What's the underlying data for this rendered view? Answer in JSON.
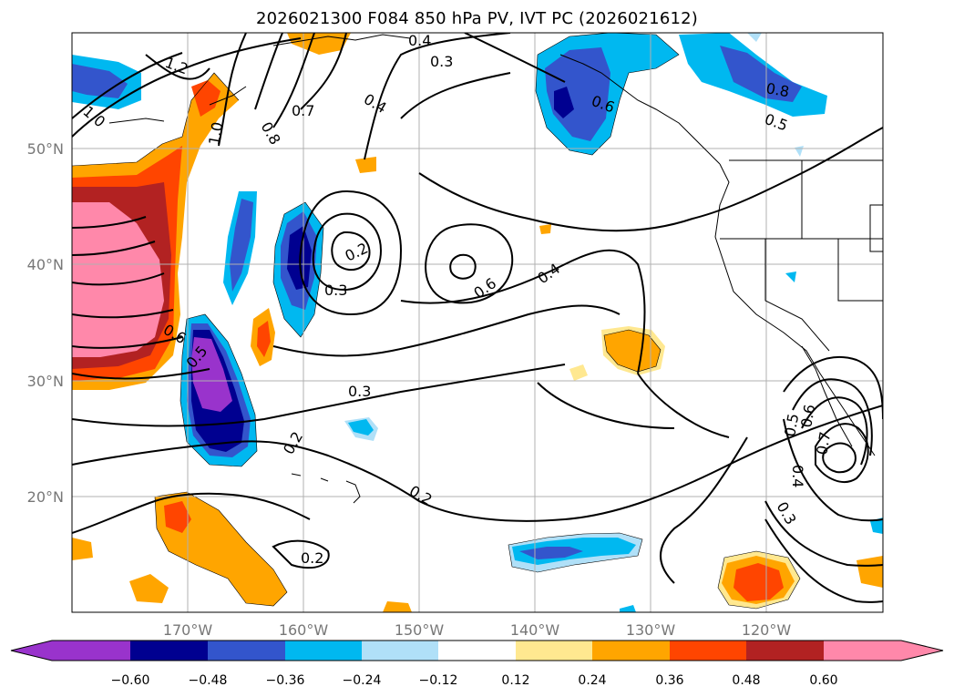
{
  "title": "2026021300 F084 850 hPa PV, IVT PC (2026021612)",
  "map": {
    "lat_labels": [
      "50°N",
      "40°N",
      "30°N",
      "20°N"
    ],
    "lon_labels": [
      "170°W",
      "160°W",
      "150°W",
      "140°W",
      "130°W",
      "120°W"
    ],
    "contour_labels": [
      "0.4",
      "0.3",
      "1.2",
      "1.0",
      "0.8",
      "1.0",
      "0.7",
      "0.4",
      "0.2",
      "0.3",
      "0.6",
      "0.4",
      "0.6",
      "0.5",
      "0.3",
      "0.2",
      "0.2",
      "0.2",
      "0.6",
      "0.8",
      "0.5",
      "0.5",
      "0.6",
      "0.7",
      "0.4",
      "0.3"
    ]
  },
  "colorbar": {
    "tick_labels": [
      "−0.60",
      "−0.48",
      "−0.36",
      "−0.24",
      "−0.12",
      "0.12",
      "0.24",
      "0.36",
      "0.48",
      "0.60"
    ],
    "colors": [
      "#9933cc",
      "#000090",
      "#3355cc",
      "#00b8f0",
      "#b0e0f8",
      "#ffffff",
      "#ffe890",
      "#ffa500",
      "#ff4500",
      "#b22222",
      "#ff88aa",
      "#ff88aa"
    ]
  }
}
